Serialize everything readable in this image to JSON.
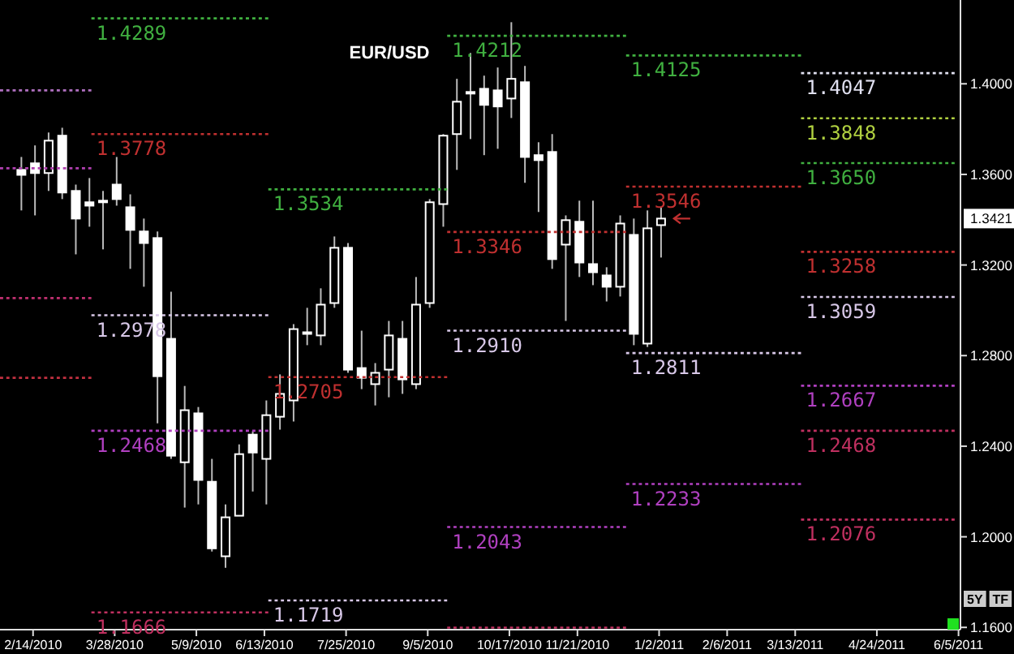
{
  "chart_data": {
    "type": "candlestick",
    "title": "EUR/USD",
    "x": [
      "2010-02-08",
      "2010-02-15",
      "2010-02-22",
      "2010-03-01",
      "2010-03-08",
      "2010-03-15",
      "2010-03-22",
      "2010-03-29",
      "2010-04-05",
      "2010-04-12",
      "2010-04-19",
      "2010-04-26",
      "2010-05-03",
      "2010-05-10",
      "2010-05-17",
      "2010-05-24",
      "2010-05-31",
      "2010-06-07",
      "2010-06-14",
      "2010-06-21",
      "2010-06-28",
      "2010-07-05",
      "2010-07-12",
      "2010-07-19",
      "2010-07-26",
      "2010-08-02",
      "2010-08-09",
      "2010-08-16",
      "2010-08-23",
      "2010-08-30",
      "2010-09-06",
      "2010-09-13",
      "2010-09-20",
      "2010-09-27",
      "2010-10-04",
      "2010-10-11",
      "2010-10-18",
      "2010-10-25",
      "2010-11-01",
      "2010-11-08",
      "2010-11-15",
      "2010-11-22",
      "2010-11-29",
      "2010-12-06",
      "2010-12-13",
      "2010-12-20",
      "2010-12-27",
      "2011-01-03"
    ],
    "ohlc": [
      [
        1.362,
        1.3677,
        1.3441,
        1.3598
      ],
      [
        1.3649,
        1.3728,
        1.3419,
        1.3606
      ],
      [
        1.3606,
        1.3785,
        1.3527,
        1.3749
      ],
      [
        1.3771,
        1.3806,
        1.3491,
        1.352
      ],
      [
        1.3527,
        1.3555,
        1.3247,
        1.3405
      ],
      [
        1.3477,
        1.3584,
        1.3369,
        1.3462
      ],
      [
        1.3484,
        1.3527,
        1.3269,
        1.3484
      ],
      [
        1.3555,
        1.3677,
        1.3462,
        1.3491
      ],
      [
        1.3455,
        1.3512,
        1.3183,
        1.3355
      ],
      [
        1.3348,
        1.3405,
        1.3104,
        1.3297
      ],
      [
        1.3319,
        1.3348,
        1.2501,
        1.2709
      ],
      [
        1.2874,
        1.3082,
        1.2344,
        1.2358
      ],
      [
        1.2329,
        1.2666,
        1.2129,
        1.2559
      ],
      [
        1.2545,
        1.2573,
        1.2143,
        1.2251
      ],
      [
        1.2243,
        1.2344,
        1.1935,
        1.1949
      ],
      [
        1.1914,
        1.2143,
        1.1863,
        1.2086
      ],
      [
        1.2093,
        1.2408,
        1.2093,
        1.2365
      ],
      [
        1.2451,
        1.2466,
        1.22,
        1.2372
      ],
      [
        1.2344,
        1.2602,
        1.2143,
        1.2537
      ],
      [
        1.253,
        1.2717,
        1.2473,
        1.2631
      ],
      [
        1.2602,
        1.2939,
        1.2509,
        1.2917
      ],
      [
        1.2903,
        1.3011,
        1.2846,
        1.2896
      ],
      [
        1.2889,
        1.3097,
        1.2846,
        1.3025
      ],
      [
        1.3032,
        1.3326,
        1.3011,
        1.3276
      ],
      [
        1.3276,
        1.3297,
        1.2724,
        1.2738
      ],
      [
        1.2745,
        1.291,
        1.2652,
        1.2702
      ],
      [
        1.2674,
        1.2767,
        1.258,
        1.2724
      ],
      [
        1.2738,
        1.2953,
        1.2616,
        1.2889
      ],
      [
        1.2874,
        1.2953,
        1.2631,
        1.2695
      ],
      [
        1.2674,
        1.3147,
        1.2652,
        1.3025
      ],
      [
        1.3032,
        1.3491,
        1.3011,
        1.3477
      ],
      [
        1.3469,
        1.3778,
        1.3369,
        1.3771
      ],
      [
        1.3778,
        1.4022,
        1.362,
        1.3921
      ],
      [
        1.3964,
        1.4136,
        1.3756,
        1.3964
      ],
      [
        1.3978,
        1.4036,
        1.3685,
        1.3907
      ],
      [
        1.3971,
        1.4072,
        1.3713,
        1.39
      ],
      [
        1.3935,
        1.4272,
        1.3849,
        1.4022
      ],
      [
        1.4007,
        1.4079,
        1.3563,
        1.3677
      ],
      [
        1.3685,
        1.3742,
        1.3434,
        1.3663
      ],
      [
        1.3699,
        1.3778,
        1.3183,
        1.3226
      ],
      [
        1.329,
        1.3419,
        1.2953,
        1.3398
      ],
      [
        1.3391,
        1.3484,
        1.3147,
        1.3211
      ],
      [
        1.3204,
        1.3484,
        1.3111,
        1.3168
      ],
      [
        1.3154,
        1.319,
        1.3039,
        1.3104
      ],
      [
        1.3104,
        1.3419,
        1.3061,
        1.3383
      ],
      [
        1.3333,
        1.3405,
        1.2846,
        1.2896
      ],
      [
        1.2853,
        1.3441,
        1.2838,
        1.3362
      ],
      [
        1.3376,
        1.3455,
        1.3233,
        1.3405
      ]
    ],
    "series": [
      {
        "type": "line",
        "color": "#b070c0",
        "x": [
          "2010-01-28",
          "2010-03-16"
        ],
        "values": [
          1.3971,
          1.3971
        ]
      },
      {
        "type": "line",
        "color": "#b040b0",
        "x": [
          "2010-01-28",
          "2010-03-16"
        ],
        "values": [
          1.3627,
          1.3627
        ]
      },
      {
        "type": "line",
        "color": "#c03070",
        "x": [
          "2010-01-28",
          "2010-03-16"
        ],
        "values": [
          1.3054,
          1.3054
        ]
      },
      {
        "type": "line",
        "color": "#c03040",
        "x": [
          "2010-01-28",
          "2010-03-16"
        ],
        "values": [
          1.2702,
          1.2702
        ]
      },
      {
        "type": "line",
        "color": "#40b040",
        "x": [
          "2010-03-16",
          "2010-06-15"
        ],
        "values": [
          1.4289,
          1.4289
        ]
      },
      {
        "type": "line",
        "color": "#c03030",
        "x": [
          "2010-03-16",
          "2010-06-15"
        ],
        "values": [
          1.3778,
          1.3778
        ]
      },
      {
        "type": "line",
        "color": "#d8c8e8",
        "x": [
          "2010-03-16",
          "2010-06-15"
        ],
        "values": [
          1.2978,
          1.2978
        ]
      },
      {
        "type": "line",
        "color": "#b040c0",
        "x": [
          "2010-03-16",
          "2010-06-15"
        ],
        "values": [
          1.2468,
          1.2468
        ]
      },
      {
        "type": "line",
        "color": "#c03060",
        "x": [
          "2010-03-16",
          "2010-06-15"
        ],
        "values": [
          1.1666,
          1.1666
        ]
      },
      {
        "type": "line",
        "color": "#40b040",
        "x": [
          "2010-06-15",
          "2010-09-15"
        ],
        "values": [
          1.3534,
          1.3534
        ]
      },
      {
        "type": "line",
        "color": "#c03030",
        "x": [
          "2010-06-15",
          "2010-09-15"
        ],
        "values": [
          1.2705,
          1.2705
        ]
      },
      {
        "type": "line",
        "color": "#d8c8e8",
        "x": [
          "2010-06-15",
          "2010-09-15"
        ],
        "values": [
          1.1719,
          1.1719
        ]
      },
      {
        "type": "line",
        "color": "#40b040",
        "x": [
          "2010-09-15",
          "2010-12-16"
        ],
        "values": [
          1.4212,
          1.4212
        ]
      },
      {
        "type": "line",
        "color": "#c03030",
        "x": [
          "2010-09-15",
          "2010-12-16"
        ],
        "values": [
          1.3346,
          1.3346
        ]
      },
      {
        "type": "line",
        "color": "#d8c8e8",
        "x": [
          "2010-09-15",
          "2010-12-16"
        ],
        "values": [
          1.291,
          1.291
        ]
      },
      {
        "type": "line",
        "color": "#b040c0",
        "x": [
          "2010-09-15",
          "2010-12-16"
        ],
        "values": [
          1.2043,
          1.2043
        ]
      },
      {
        "type": "line",
        "color": "#c03060",
        "x": [
          "2010-09-15",
          "2010-12-16"
        ],
        "values": [
          1.1599,
          1.1599
        ]
      },
      {
        "type": "line",
        "color": "#40b040",
        "x": [
          "2010-12-16",
          "2011-03-16"
        ],
        "values": [
          1.4125,
          1.4125
        ]
      },
      {
        "type": "line",
        "color": "#c03030",
        "x": [
          "2010-12-16",
          "2011-03-16"
        ],
        "values": [
          1.3546,
          1.3546
        ]
      },
      {
        "type": "line",
        "color": "#d8c8e8",
        "x": [
          "2010-12-16",
          "2011-03-16"
        ],
        "values": [
          1.2811,
          1.2811
        ]
      },
      {
        "type": "line",
        "color": "#b040c0",
        "x": [
          "2010-12-16",
          "2011-03-16"
        ],
        "values": [
          1.2233,
          1.2233
        ]
      },
      {
        "type": "line",
        "color": "#e0e0f0",
        "x": [
          "2011-03-16",
          "2011-06-03"
        ],
        "values": [
          1.4047,
          1.4047
        ]
      },
      {
        "type": "line",
        "color": "#b0d040",
        "x": [
          "2011-03-16",
          "2011-06-03"
        ],
        "values": [
          1.3848,
          1.3848
        ]
      },
      {
        "type": "line",
        "color": "#40b040",
        "x": [
          "2011-03-16",
          "2011-06-03"
        ],
        "values": [
          1.365,
          1.365
        ]
      },
      {
        "type": "line",
        "color": "#c03030",
        "x": [
          "2011-03-16",
          "2011-06-03"
        ],
        "values": [
          1.3258,
          1.3258
        ]
      },
      {
        "type": "line",
        "color": "#d8c8e8",
        "x": [
          "2011-03-16",
          "2011-06-03"
        ],
        "values": [
          1.3059,
          1.3059
        ]
      },
      {
        "type": "line",
        "color": "#b040c0",
        "x": [
          "2011-03-16",
          "2011-06-03"
        ],
        "values": [
          1.2667,
          1.2667
        ]
      },
      {
        "type": "line",
        "color": "#c03060",
        "x": [
          "2011-03-16",
          "2011-06-03"
        ],
        "values": [
          1.2468,
          1.2468
        ]
      },
      {
        "type": "line",
        "color": "#c03060",
        "x": [
          "2011-03-16",
          "2011-06-03"
        ],
        "values": [
          1.2076,
          1.2076
        ]
      }
    ],
    "line_style": "dotted",
    "annotations": [
      {
        "text": "1.4289",
        "x": "2010-03-16",
        "y": 1.4289
      },
      {
        "text": "1.3778",
        "x": "2010-03-16",
        "y": 1.3778
      },
      {
        "text": "1.2978",
        "x": "2010-03-16",
        "y": 1.2978
      },
      {
        "text": "1.2468",
        "x": "2010-03-16",
        "y": 1.2468
      },
      {
        "text": "1.1666",
        "x": "2010-03-16",
        "y": 1.1666
      },
      {
        "text": "1.3534",
        "x": "2010-06-15",
        "y": 1.3534
      },
      {
        "text": "1.2705",
        "x": "2010-06-15",
        "y": 1.2705
      },
      {
        "text": "1.1719",
        "x": "2010-06-15",
        "y": 1.1719
      },
      {
        "text": "1.4212",
        "x": "2010-09-15",
        "y": 1.4212
      },
      {
        "text": "1.3346",
        "x": "2010-09-15",
        "y": 1.3346
      },
      {
        "text": "1.2910",
        "x": "2010-09-15",
        "y": 1.291
      },
      {
        "text": "1.2043",
        "x": "2010-09-15",
        "y": 1.2043
      },
      {
        "text": "1.4125",
        "x": "2010-12-16",
        "y": 1.4125
      },
      {
        "text": "1.3546",
        "x": "2010-12-16",
        "y": 1.3546
      },
      {
        "text": "1.2811",
        "x": "2010-12-16",
        "y": 1.2811
      },
      {
        "text": "1.2233",
        "x": "2010-12-16",
        "y": 1.2233
      },
      {
        "text": "1.4047",
        "x": "2011-03-16",
        "y": 1.4047
      },
      {
        "text": "1.3848",
        "x": "2011-03-16",
        "y": 1.3848
      },
      {
        "text": "1.3650",
        "x": "2011-03-16",
        "y": 1.365
      },
      {
        "text": "1.3258",
        "x": "2011-03-16",
        "y": 1.3258
      },
      {
        "text": "1.3059",
        "x": "2011-03-16",
        "y": 1.3059
      },
      {
        "text": "1.2667",
        "x": "2011-03-16",
        "y": 1.2667
      },
      {
        "text": "1.2468",
        "x": "2011-03-16",
        "y": 1.2468
      },
      {
        "text": "1.2076",
        "x": "2011-03-16",
        "y": 1.2076
      },
      "1.3421",
      "5Y",
      "TF"
    ],
    "xlim": [
      "2010-01-28",
      "2011-06-06"
    ],
    "xticks": [
      {
        "value": "2010-02-14",
        "label": "2/14/2010"
      },
      {
        "value": "2010-03-28",
        "label": "3/28/2010"
      },
      {
        "value": "2010-05-09",
        "label": "5/9/2010"
      },
      {
        "value": "2010-06-13",
        "label": "6/13/2010"
      },
      {
        "value": "2010-07-25",
        "label": "7/25/2010"
      },
      {
        "value": "2010-09-05",
        "label": "9/5/2010"
      },
      {
        "value": "2010-10-17",
        "label": "10/17/2010"
      },
      {
        "value": "2010-11-21",
        "label": "11/21/2010"
      },
      {
        "value": "2011-01-02",
        "label": "1/2/2011"
      },
      {
        "value": "2011-02-06",
        "label": "2/6/2011"
      },
      {
        "value": "2011-03-13",
        "label": "3/13/2011"
      },
      {
        "value": "2011-04-24",
        "label": "4/24/2011"
      },
      {
        "value": "2011-06-05",
        "label": "6/5/2011"
      }
    ],
    "ylim": [
      1.159,
      1.437
    ],
    "yticks": [
      {
        "value": 1.16,
        "label": "1.1600"
      },
      {
        "value": 1.2,
        "label": "1.2000"
      },
      {
        "value": 1.24,
        "label": "1.2400"
      },
      {
        "value": 1.28,
        "label": "1.2800"
      },
      {
        "value": 1.32,
        "label": "1.3200"
      },
      {
        "value": 1.36,
        "label": "1.3600"
      },
      {
        "value": 1.4,
        "label": "1.4000"
      }
    ]
  }
}
